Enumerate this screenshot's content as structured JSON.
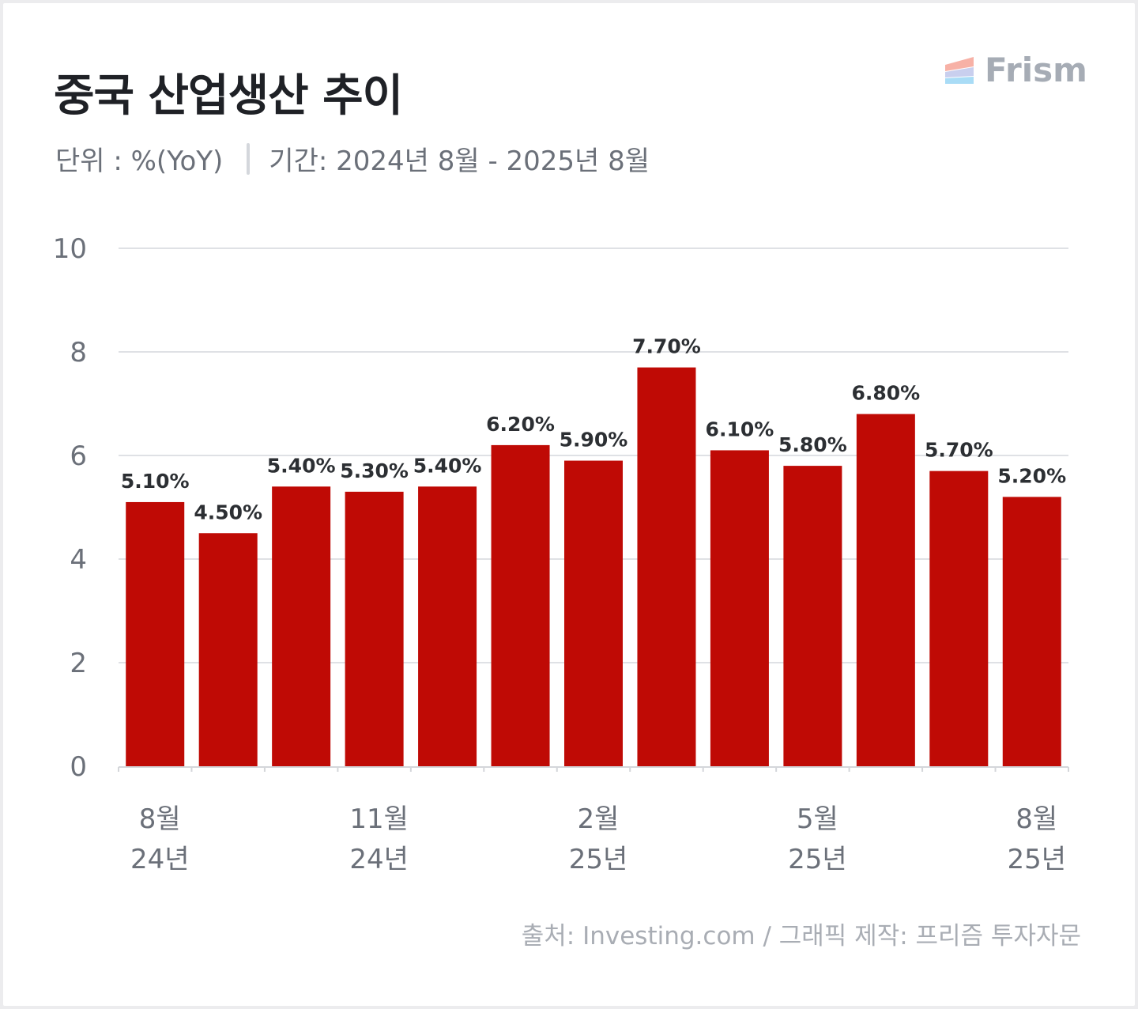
{
  "header": {
    "title": "중국 산업생산 추이",
    "unit_label": "단위 : %(YoY)",
    "period_label": "기간: 2024년 8월 - 2025년 8월"
  },
  "logo": {
    "text": "Frism",
    "colors": [
      "#f7b1a6",
      "#c9cfee",
      "#a9dcf6"
    ]
  },
  "footer": {
    "source": "출처: Investing.com / 그래픽 제작: 프리즘 투자자문"
  },
  "colors": {
    "bar": "#bf0a05",
    "grid": "#dfe1e5",
    "axis_text": "#6b7079",
    "label_text": "#2c2f33"
  },
  "chart_data": {
    "type": "bar",
    "categories": [
      "2024-08",
      "2024-09",
      "2024-10",
      "2024-11",
      "2024-12",
      "2025-01",
      "2025-02",
      "2025-03",
      "2025-04",
      "2025-05",
      "2025-06",
      "2025-07",
      "2025-08"
    ],
    "values": [
      5.1,
      4.5,
      5.4,
      5.3,
      5.4,
      6.2,
      5.9,
      7.7,
      6.1,
      5.8,
      6.8,
      5.7,
      5.2
    ],
    "data_labels": [
      "5.10%",
      "4.50%",
      "5.40%",
      "5.30%",
      "5.40%",
      "6.20%",
      "5.90%",
      "7.70%",
      "6.10%",
      "5.80%",
      "6.80%",
      "5.70%",
      "5.20%"
    ],
    "x_tick_labels": [
      {
        "index": 0,
        "month": "8월",
        "year": "24년"
      },
      {
        "index": 3,
        "month": "11월",
        "year": "24년"
      },
      {
        "index": 6,
        "month": "2월",
        "year": "25년"
      },
      {
        "index": 9,
        "month": "5월",
        "year": "25년"
      },
      {
        "index": 12,
        "month": "8월",
        "year": "25년"
      }
    ],
    "y_ticks": [
      0,
      2,
      4,
      6,
      8,
      10
    ],
    "ylim": [
      0,
      10
    ],
    "grid": true,
    "legend": "none"
  }
}
